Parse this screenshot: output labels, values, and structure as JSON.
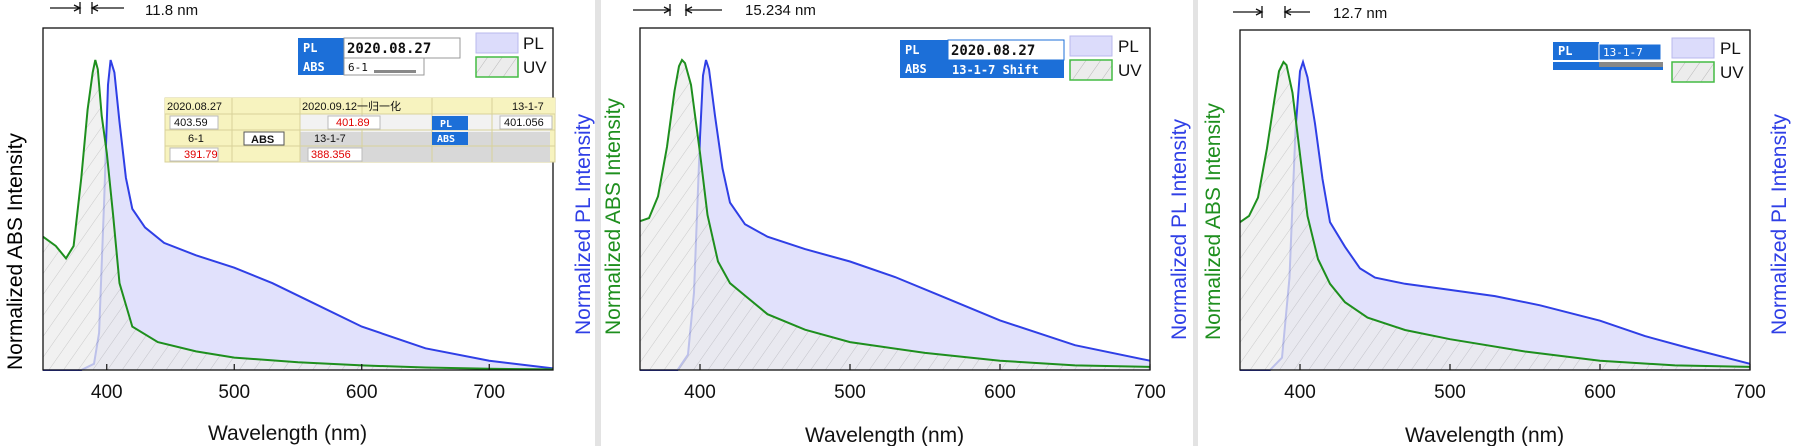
{
  "colors": {
    "pl": "#2f3fe6",
    "pl_fill": "#dcdcfb",
    "abs": "#1e8f1e",
    "abs_fill": "#e6e6e6",
    "badge_bg": "#1c6fd8",
    "annot_bg": "#f7f3bf",
    "red": "#e00000"
  },
  "legend": {
    "pl": "PL",
    "uv": "UV"
  },
  "labels": {
    "y_abs": "Normalized ABS Intensity",
    "y_pl": "Normalized PL Intensity",
    "x": "Wavelength (nm)"
  },
  "chart_data": [
    {
      "type": "area",
      "title": "",
      "xlabel": "Wavelength (nm)",
      "ylabel_left": "Normalized ABS Intensity",
      "ylabel_right": "",
      "xlim": [
        350,
        750
      ],
      "ylim": [
        0,
        1
      ],
      "x_ticks": [
        400,
        500,
        600,
        700
      ],
      "annotation": "11.8 nm",
      "legend": [
        "PL",
        "UV"
      ],
      "legend_position": "top-right",
      "series": [
        {
          "name": "UV",
          "x": [
            350,
            360,
            368,
            374,
            380,
            385,
            389,
            391,
            393,
            396,
            400,
            405,
            410,
            420,
            440,
            470,
            500,
            550,
            600,
            650,
            700,
            750
          ],
          "values": [
            0.43,
            0.4,
            0.36,
            0.4,
            0.62,
            0.84,
            0.96,
            1.0,
            0.97,
            0.82,
            0.7,
            0.5,
            0.28,
            0.14,
            0.09,
            0.06,
            0.04,
            0.025,
            0.015,
            0.008,
            0.004,
            0.002
          ]
        },
        {
          "name": "PL",
          "x": [
            350,
            380,
            390,
            394,
            398,
            401,
            403,
            406,
            410,
            415,
            420,
            430,
            445,
            470,
            500,
            530,
            560,
            600,
            650,
            700,
            750
          ],
          "values": [
            0,
            0,
            0.02,
            0.12,
            0.55,
            0.92,
            1.0,
            0.96,
            0.8,
            0.62,
            0.52,
            0.46,
            0.41,
            0.37,
            0.33,
            0.28,
            0.22,
            0.14,
            0.07,
            0.03,
            0.005
          ]
        }
      ],
      "table": {
        "header": [
          "2020.08.27",
          "",
          "2020.09.12一归一化",
          "",
          "13-1-7"
        ],
        "row1": [
          "403.59",
          "",
          "401.89",
          "PL",
          "401.056"
        ],
        "row2": [
          "6-1",
          "ABS",
          "13-1-7",
          "ABS",
          ""
        ],
        "row3": [
          "391.79",
          "",
          "388.356",
          "",
          ""
        ]
      },
      "badges": [
        {
          "tag": "PL",
          "value": "2020.08.27"
        },
        {
          "tag": "ABS",
          "value": "6-1"
        }
      ]
    },
    {
      "type": "area",
      "title": "",
      "xlabel": "Wavelength (nm)",
      "ylabel_left": "Normalized ABS Intensity",
      "ylabel_right": "Normalized PL Intensity",
      "xlim": [
        360,
        700
      ],
      "ylim": [
        0,
        1
      ],
      "x_ticks": [
        400,
        500,
        600,
        700
      ],
      "annotation": "15.234 nm",
      "legend": [
        "PL",
        "UV"
      ],
      "legend_position": "top-right",
      "series": [
        {
          "name": "UV",
          "x": [
            360,
            366,
            372,
            378,
            383,
            386,
            388,
            390,
            394,
            400,
            405,
            412,
            420,
            430,
            445,
            470,
            500,
            550,
            600,
            650,
            700
          ],
          "values": [
            0.48,
            0.49,
            0.56,
            0.72,
            0.9,
            0.98,
            1.0,
            0.99,
            0.92,
            0.7,
            0.5,
            0.35,
            0.28,
            0.24,
            0.18,
            0.13,
            0.09,
            0.055,
            0.03,
            0.015,
            0.01
          ]
        },
        {
          "name": "PL",
          "x": [
            360,
            385,
            392,
            396,
            400,
            402,
            404,
            406,
            410,
            415,
            420,
            430,
            445,
            470,
            500,
            530,
            560,
            600,
            650,
            700
          ],
          "values": [
            0,
            0,
            0.05,
            0.25,
            0.75,
            0.95,
            1.0,
            0.97,
            0.82,
            0.65,
            0.54,
            0.47,
            0.43,
            0.39,
            0.35,
            0.3,
            0.24,
            0.16,
            0.08,
            0.03
          ]
        }
      ],
      "badges": [
        {
          "tag": "PL",
          "value": "2020.08.27"
        },
        {
          "tag": "ABS",
          "value": "13-1-7  Shift"
        }
      ]
    },
    {
      "type": "area",
      "title": "",
      "xlabel": "Wavelength (nm)",
      "ylabel_left": "Normalized ABS Intensity",
      "ylabel_right": "Normalized PL Intensity",
      "xlim": [
        360,
        700
      ],
      "ylim": [
        0,
        1
      ],
      "x_ticks": [
        400,
        500,
        600,
        700
      ],
      "annotation": "12.7 nm",
      "legend": [
        "PL",
        "UV"
      ],
      "legend_position": "top-right",
      "series": [
        {
          "name": "UV",
          "x": [
            360,
            366,
            372,
            378,
            383,
            386,
            389,
            391,
            395,
            400,
            405,
            412,
            420,
            430,
            445,
            470,
            500,
            550,
            600,
            650,
            700
          ],
          "values": [
            0.48,
            0.5,
            0.56,
            0.72,
            0.88,
            0.97,
            1.0,
            0.99,
            0.9,
            0.7,
            0.5,
            0.36,
            0.28,
            0.22,
            0.17,
            0.13,
            0.1,
            0.06,
            0.03,
            0.015,
            0.01
          ]
        },
        {
          "name": "PL",
          "x": [
            360,
            380,
            388,
            393,
            397,
            400,
            402,
            405,
            410,
            415,
            420,
            430,
            440,
            450,
            470,
            500,
            530,
            560,
            600,
            630,
            660,
            700
          ],
          "values": [
            0,
            0,
            0.04,
            0.3,
            0.78,
            0.97,
            1.0,
            0.95,
            0.8,
            0.62,
            0.48,
            0.4,
            0.33,
            0.3,
            0.28,
            0.26,
            0.24,
            0.21,
            0.16,
            0.11,
            0.07,
            0.02
          ]
        }
      ],
      "badges": [
        {
          "tag": "PL",
          "value": "13-1-7"
        },
        {
          "tag": "ABS",
          "value": ""
        }
      ]
    }
  ]
}
